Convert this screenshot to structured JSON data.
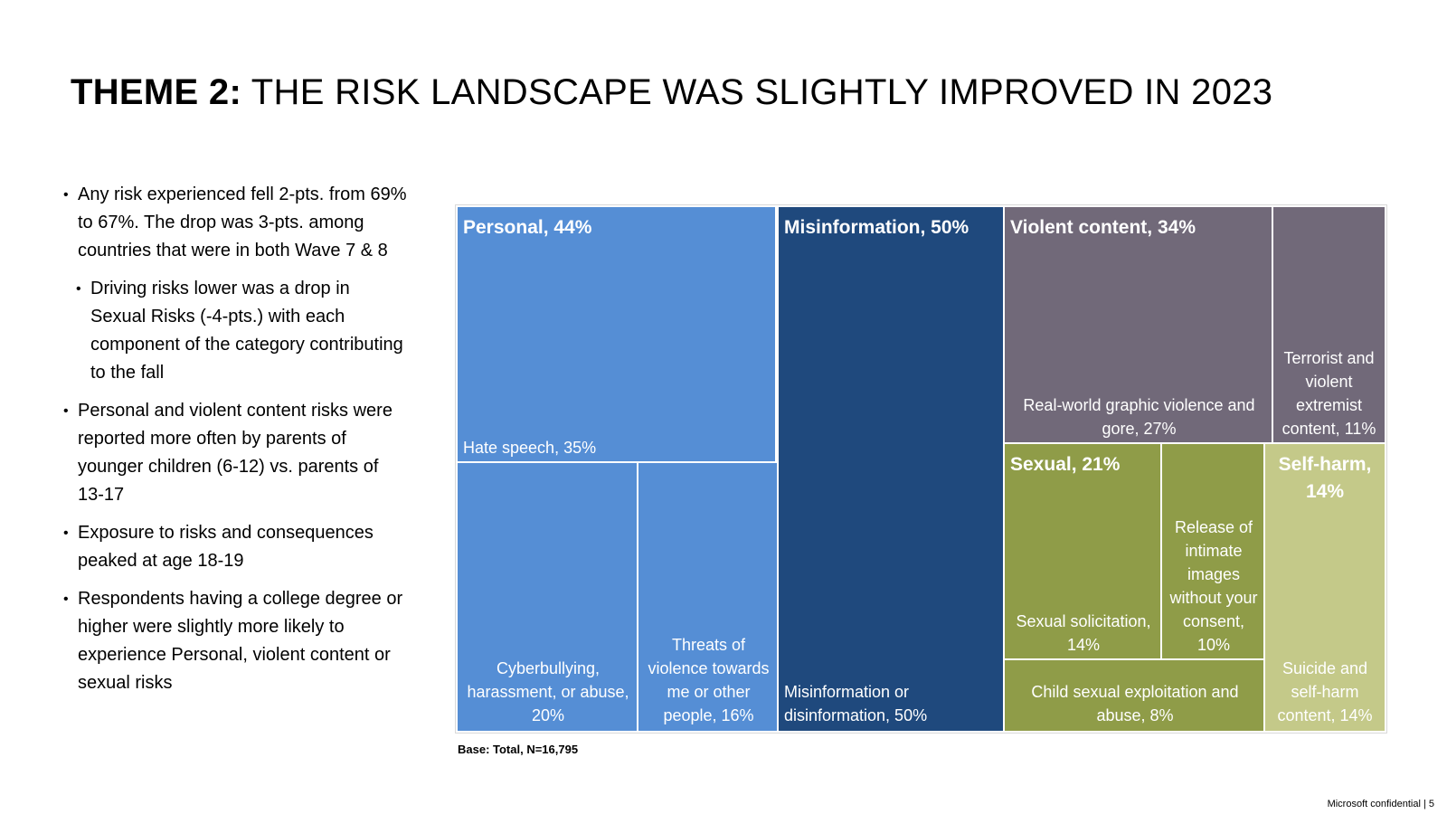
{
  "title": {
    "bold": "THEME 2:",
    "rest": "THE RISK LANDSCAPE WAS SLIGHTLY IMPROVED IN 2023"
  },
  "bullets": [
    {
      "text": "Any risk experienced fell 2-pts. from 69% to 67%. The drop was 3-pts. among countries that were in both Wave 7 & 8",
      "level": 1
    },
    {
      "text": "Driving risks lower was a drop in Sexual Risks (-4-pts.) with each component of the category contributing to the fall",
      "level": 2
    },
    {
      "text": "Personal and violent content risks were reported more often by parents of younger children (6-12) vs. parents of 13-17",
      "level": 1
    },
    {
      "text": "Exposure to risks and consequences peaked at age 18-19",
      "level": 1
    },
    {
      "text": "Respondents having a college degree or higher were slightly more likely to experience Personal, violent content or sexual risks",
      "level": 1
    }
  ],
  "chart_data": {
    "type": "treemap",
    "groups": [
      {
        "name": "Personal",
        "value": 44,
        "header": "Personal, 44%",
        "color": "#558ed5",
        "items": [
          {
            "label": "Hate speech, 35%",
            "value": 35
          },
          {
            "label": "Cyberbullying, harassment, or abuse, 20%",
            "value": 20
          },
          {
            "label": "Threats of violence towards me or other people, 16%",
            "value": 16
          }
        ]
      },
      {
        "name": "Misinformation",
        "value": 50,
        "header": "Misinformation, 50%",
        "color": "#1f497d",
        "items": [
          {
            "label": "Misinformation or disinformation, 50%",
            "value": 50
          }
        ]
      },
      {
        "name": "Violent content",
        "value": 34,
        "header": "Violent content, 34%",
        "color": "#716979",
        "items": [
          {
            "label": "Real-world graphic violence and gore, 27%",
            "value": 27
          },
          {
            "label": "Terrorist and violent extremist content, 11%",
            "value": 11
          }
        ]
      },
      {
        "name": "Sexual",
        "value": 21,
        "header": "Sexual, 21%",
        "color": "#8f9c48",
        "items": [
          {
            "label": "Sexual solicitation, 14%",
            "value": 14
          },
          {
            "label": "Release of intimate images without your consent, 10%",
            "value": 10
          },
          {
            "label": "Child sexual exploitation and abuse, 8%",
            "value": 8
          }
        ]
      },
      {
        "name": "Self-harm",
        "value": 14,
        "header": "Self-harm, 14%",
        "color": "#c4c989",
        "items": [
          {
            "label": "Suicide and self-harm content, 14%",
            "value": 14
          }
        ]
      }
    ]
  },
  "base_note": "Base: Total, N=16,795",
  "footer": "Microsoft confidential | 5"
}
